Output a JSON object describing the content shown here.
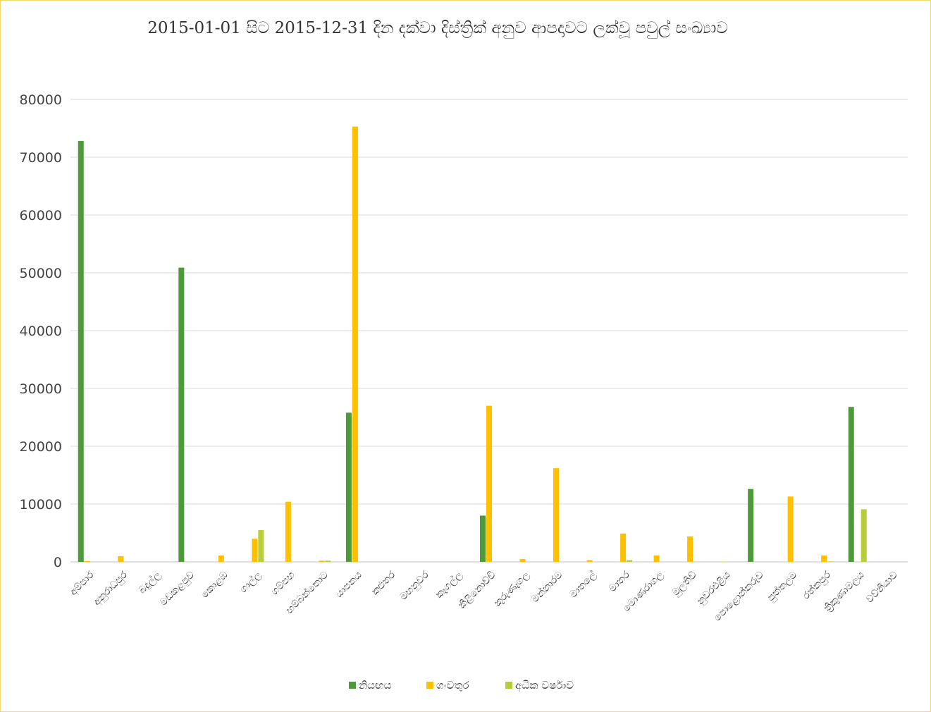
{
  "chart_data": {
    "type": "bar",
    "title": "2015-01-01 සිට 2015-12-31 දින දක්වා දිස්ත්‍රික් අනුව ආපදාවට ලක්වූ පවුල් සංඛ්‍යාව",
    "xlabel": "",
    "ylabel": "",
    "ylim": [
      0,
      80000
    ],
    "yticks": [
      0,
      10000,
      20000,
      30000,
      40000,
      50000,
      60000,
      70000,
      80000
    ],
    "grid": true,
    "legend_position": "bottom",
    "categories": [
      "අම්පාර",
      "අනුරාධපුර",
      "බදුල්ල",
      "මඩකළපුව",
      "කොළඹ",
      "ගාල්ල",
      "ගම්පහ",
      "හම්බන්තොට",
      "යාපනය",
      "කළුතර",
      "මහනුවර",
      "කෑගල්ල",
      "කිළිනොච්චි",
      "කුරුණෑගල",
      "මන්නාරම",
      "මාතලේ",
      "මාතර",
      "මොණරාගල",
      "මුලතිව්",
      "නුවරඑළිය",
      "පොළොන්නරුව",
      "පුත්තලම",
      "රත්නපුර",
      "ත්‍රිකුණාමලය",
      "වව්නියාව"
    ],
    "series": [
      {
        "name": "නියඟය",
        "color": "#4e9a3a",
        "values": [
          72800,
          0,
          0,
          50900,
          0,
          0,
          0,
          0,
          25800,
          0,
          0,
          0,
          8000,
          0,
          0,
          0,
          0,
          0,
          0,
          0,
          12600,
          0,
          0,
          26800,
          0
        ]
      },
      {
        "name": "ගංවතුර",
        "color": "#ffc000",
        "values": [
          150,
          1000,
          0,
          0,
          1100,
          4000,
          10400,
          200,
          75300,
          0,
          0,
          0,
          27000,
          500,
          16200,
          300,
          4900,
          1100,
          4400,
          50,
          0,
          11300,
          1100,
          0,
          0
        ]
      },
      {
        "name": "අධික වර්ෂාව",
        "color": "#b9cc3a",
        "values": [
          0,
          0,
          0,
          0,
          0,
          5500,
          0,
          200,
          0,
          0,
          0,
          0,
          0,
          0,
          0,
          0,
          300,
          0,
          0,
          0,
          0,
          0,
          80,
          9100,
          0
        ]
      }
    ]
  }
}
